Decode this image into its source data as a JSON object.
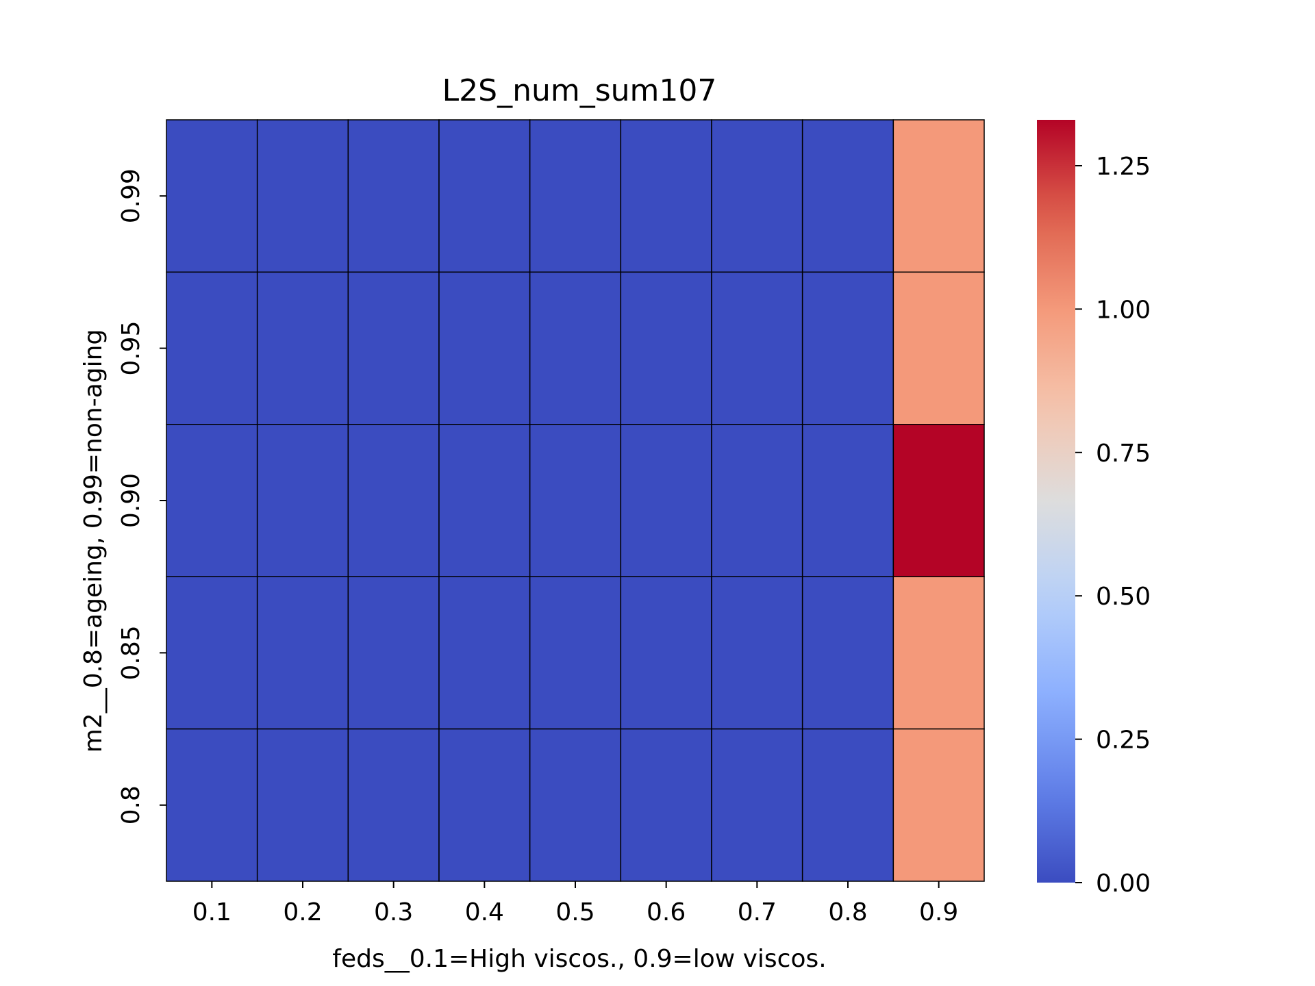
{
  "chart_data": {
    "type": "heatmap",
    "title": "L2S_num_sum107",
    "xlabel": "feds__0.1=High viscos., 0.9=low viscos.",
    "ylabel": "m2__0.8=ageing, 0.99=non-aging",
    "x_categories": [
      "0.1",
      "0.2",
      "0.3",
      "0.4",
      "0.5",
      "0.6",
      "0.7",
      "0.8",
      "0.9"
    ],
    "y_categories": [
      "0.99",
      "0.95",
      "0.90",
      "0.85",
      "0.8"
    ],
    "values": [
      [
        0,
        0,
        0,
        0,
        0,
        0,
        0,
        0,
        1.0
      ],
      [
        0,
        0,
        0,
        0,
        0,
        0,
        0,
        0,
        1.0
      ],
      [
        0,
        0,
        0,
        0,
        0,
        0,
        0,
        0,
        1.33
      ],
      [
        0,
        0,
        0,
        0,
        0,
        0,
        0,
        0,
        1.0
      ],
      [
        0,
        0,
        0,
        0,
        0,
        0,
        0,
        0,
        1.0
      ]
    ],
    "colormap": "coolwarm",
    "vmin": 0,
    "vmax": 1.33,
    "colorbar_ticks": [
      "0.00",
      "0.25",
      "0.50",
      "0.75",
      "1.00",
      "1.25"
    ],
    "colorbar_tick_values": [
      0,
      0.25,
      0.5,
      0.75,
      1.0,
      1.25
    ],
    "cell_border_color": "#000000",
    "grid": false,
    "legend": "colorbar-right"
  }
}
